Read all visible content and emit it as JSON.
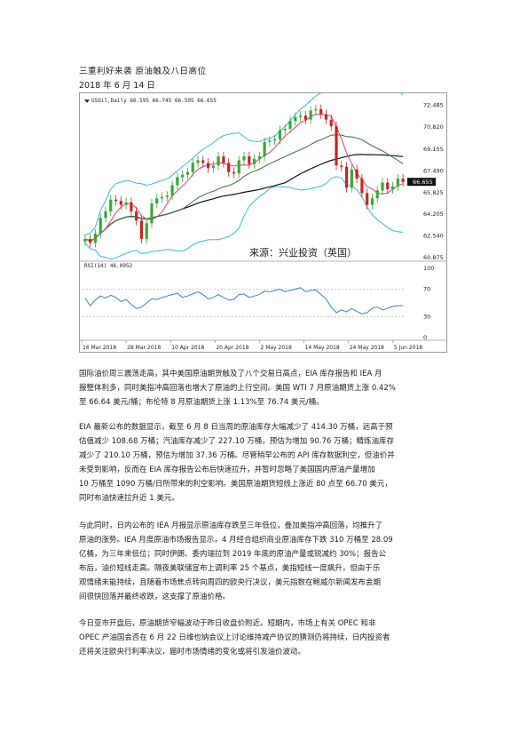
{
  "doc": {
    "title": "三重利好来袭 原油触及八日高位",
    "date": "2018 年 6 月 14 日"
  },
  "chart": {
    "legend_text": "USOil,Daily 66.595 66.745 66.505 66.655",
    "rsi_label": "RSI(14) 46.0952",
    "source_text": "来源：兴业投资（英国）",
    "current_price": "66.655",
    "colors": {
      "up": "#33aa33",
      "down": "#cc2222",
      "ma_fast": "#e0407a",
      "ma_mid": "#2a7a2a",
      "ma_slow": "#111111",
      "bollinger": "#33bbdd",
      "rsi": "#3388cc"
    }
  },
  "chart_data": {
    "type": "candlestick",
    "price_axis": [
      "72.485",
      "70.820",
      "69.155",
      "67.490",
      "65.825",
      "64.205",
      "62.540",
      "60.875"
    ],
    "rsi_axis": [
      "100",
      "70",
      "30",
      "0"
    ],
    "x_labels": [
      "16 Mar 2018",
      "28 Mar 2018",
      "10 Apr 2018",
      "20 Apr 2018",
      "2 May 2018",
      "14 May 2018",
      "24 May 2018",
      "5 Jun 2018"
    ],
    "ylim": [
      60.875,
      72.8
    ],
    "closes": [
      62.3,
      62.0,
      62.7,
      63.9,
      64.4,
      65.3,
      65.2,
      64.9,
      65.1,
      64.4,
      63.7,
      62.3,
      63.5,
      65.0,
      65.4,
      65.5,
      65.6,
      66.4,
      67.0,
      67.2,
      67.4,
      68.1,
      68.3,
      68.1,
      67.7,
      67.9,
      68.6,
      68.1,
      67.4,
      67.3,
      68.3,
      68.6,
      68.0,
      68.4,
      68.6,
      69.7,
      69.8,
      69.9,
      70.6,
      70.7,
      71.3,
      71.6,
      71.7,
      71.4,
      72.1,
      72.2,
      71.8,
      71.4,
      70.9,
      67.9,
      67.8,
      66.2,
      67.6,
      66.9,
      65.8,
      64.9,
      65.4,
      66.0,
      66.6,
      66.1,
      66.3,
      66.9,
      66.65
    ],
    "rsi_values": [
      57,
      46,
      54,
      60,
      57,
      61,
      58,
      52,
      55,
      48,
      42,
      44,
      50,
      56,
      55,
      58,
      60,
      62,
      64,
      58,
      60,
      63,
      66,
      62,
      56,
      58,
      62,
      58,
      54,
      55,
      62,
      63,
      58,
      60,
      62,
      67,
      66,
      68,
      70,
      66,
      68,
      70,
      72,
      66,
      68,
      69,
      62,
      56,
      44,
      36,
      40,
      37,
      42,
      38,
      34,
      36,
      42,
      44,
      40,
      42,
      45,
      46,
      46
    ]
  },
  "paragraphs": [
    [
      "国际油价周三震荡走高，其中美国原油期货触及了八个交易日高点，EIA 库存报告和 IEA 月",
      "报整体利多，同时美指冲高回落也增大了原油的上行空间。美国 WTI 7 月原油期货上涨 0.42%",
      "至 66.64 美元/桶；布伦特 8 月原油期货上涨 1.13%至 76.74 美元/桶。"
    ],
    [
      "EIA 最新公布的数据显示，截至 6 月 8 日当周的原油库存大幅减少了 414.30 万桶，远高于预",
      "估值减少 108.68 万桶；汽油库存减少了 227.10 万桶，预估为增加 90.76 万桶；精炼油库存",
      "减少了 210.10 万桶，预估为增加 37.36 万桶。尽管稍早公布的 API 库存数据利空，但油价并",
      "未受到影响，反而在 EIA 库存报告公布后快速拉升，并暂时忽略了美国国内原油产量增加",
      "10 万桶至 1090 万桶/日所带来的利空影响。美国原油期货短线上涨近 80 点至 66.70 美元，",
      "同时布油快速拉升近 1 美元。"
    ],
    [
      "与此同时，日内公布的 IEA 月报显示原油库存跌至三年低位，叠加美指冲高回落，均推升了",
      "原油的涨势。IEA 月度原油市场报告显示，4 月经合组织商业原油库存下跌 310 万桶至 28.09",
      "亿桶，为三年来低位；同时伊朗、委内瑞拉到 2019 年底的原油产量或锐减约 30%；报告公",
      "布后，油价短线走高。隔夜美联储宣布上调利率 25 个基点，美指短线一度飙升，但由于乐",
      "观情绪未能持续，且随着市场焦点转向周四的欧央行决议，美元指数在鲍威尔新闻发布会期",
      "间很快回落并最终收跌，这支撑了原油价格。"
    ],
    [
      "今日亚市开盘后，原油期货窄幅波动于昨日收盘价附近。短期内，市场上有关 OPEC 和非",
      "OPEC 产油国会否在 6 月 22 日维也纳会议上讨论维持减产协议的猜测仍将持续，日内投资者",
      "还将关注欧央行利率决议，届时市场情绪的变化或将引发油价波动。"
    ]
  ]
}
